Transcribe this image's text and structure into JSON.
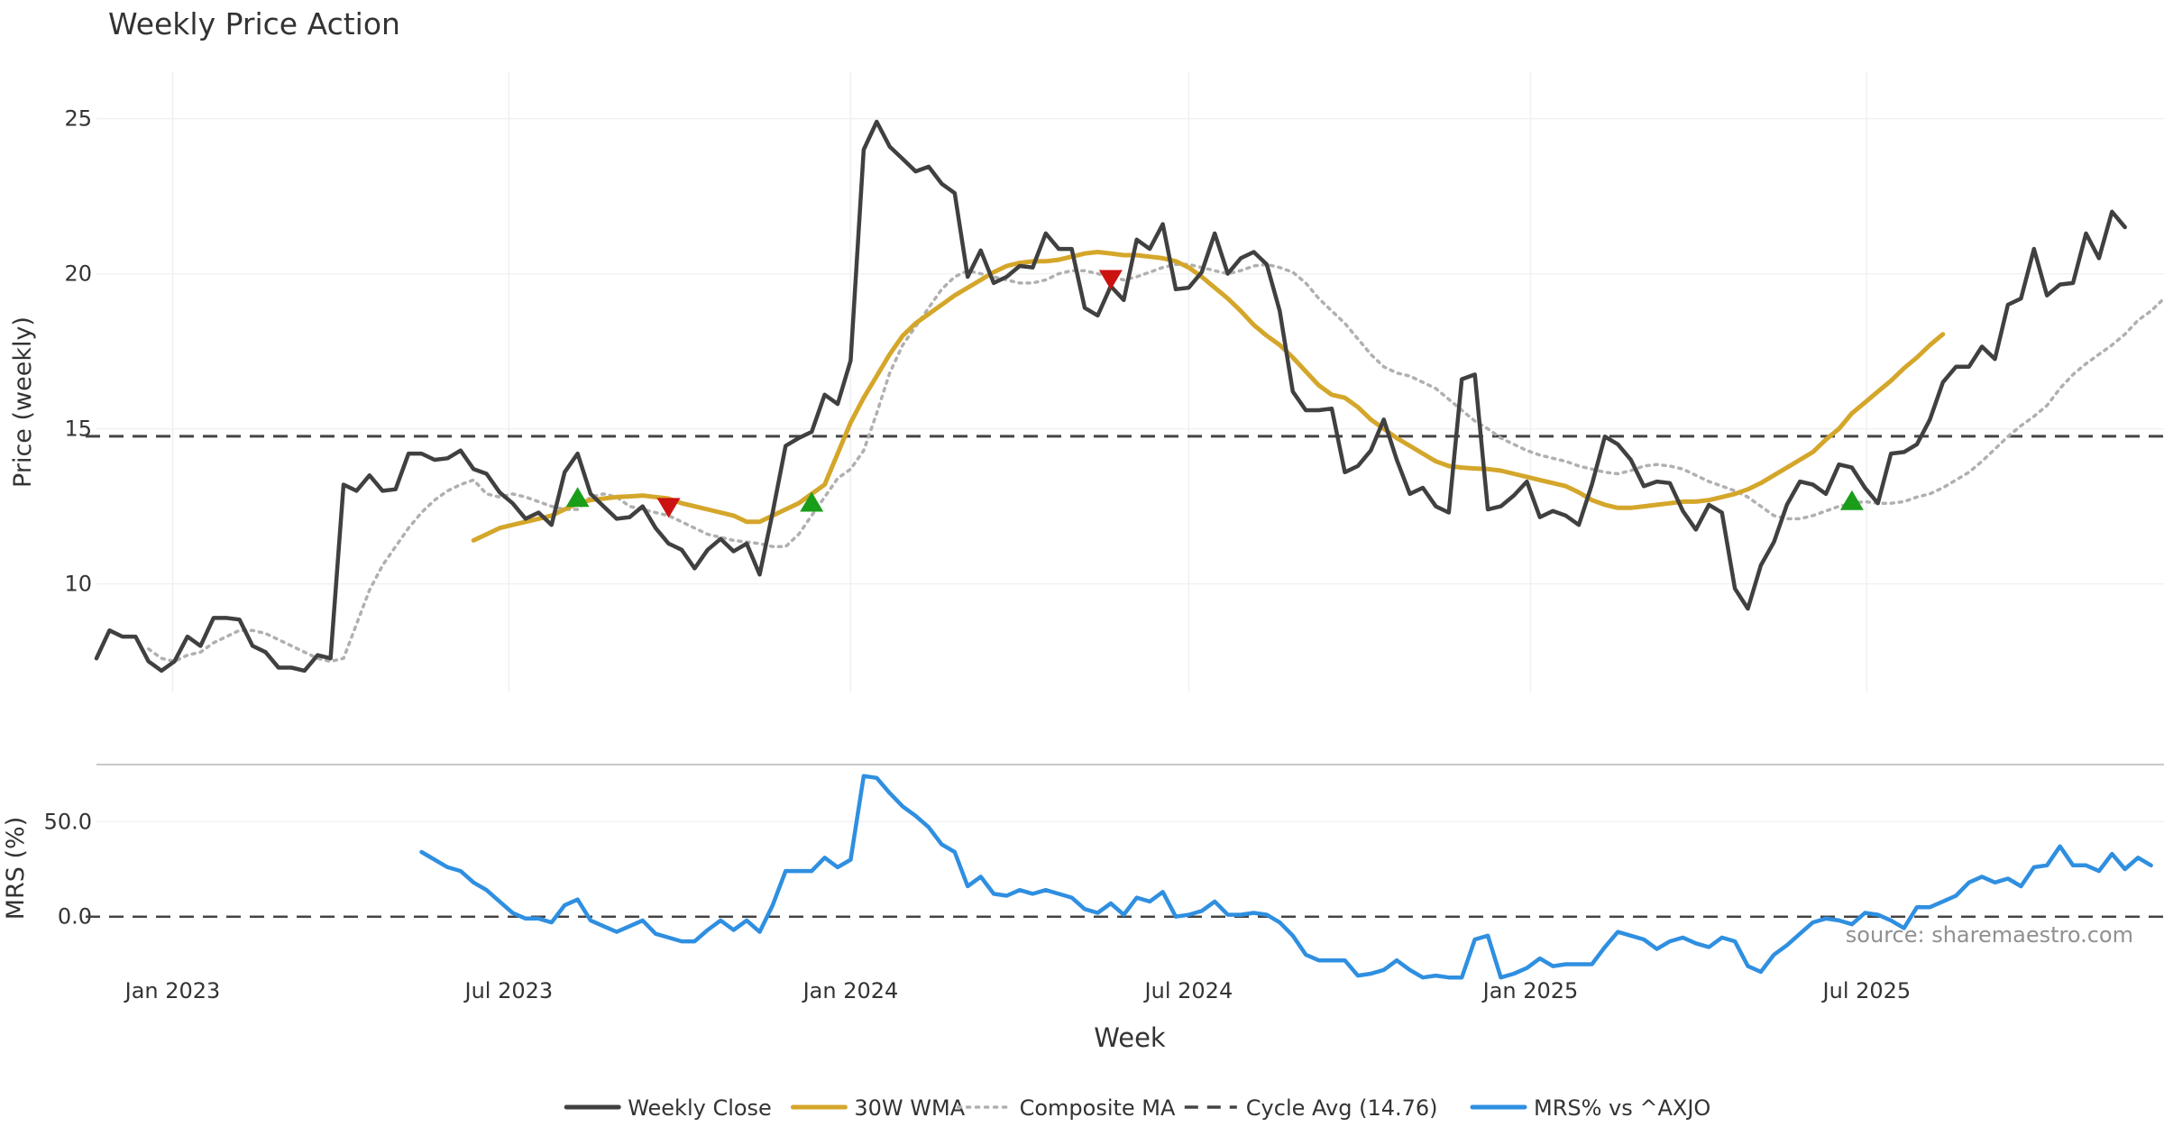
{
  "chart_data": [
    {
      "type": "line",
      "panel": "price",
      "title": "Weekly Price Action",
      "xlabel": "Week",
      "ylabel": "Price (weekly)",
      "ylim": [
        6.5,
        26.5
      ],
      "yticks": [
        10,
        15,
        20,
        25
      ],
      "x_start": "2022-11-21",
      "x_step_days": 7,
      "grid": true,
      "series": [
        {
          "name": "Weekly Close",
          "color": "#404040",
          "style": "solid",
          "start_week": 0,
          "values": [
            7.6,
            8.5,
            8.3,
            8.3,
            7.5,
            7.2,
            7.5,
            8.3,
            8.0,
            8.9,
            8.9,
            8.85,
            8.0,
            7.8,
            7.3,
            7.3,
            7.2,
            7.7,
            7.6,
            13.2,
            13.0,
            13.5,
            13.0,
            13.05,
            14.2,
            14.2,
            14.0,
            14.05,
            14.3,
            13.7,
            13.55,
            12.95,
            12.6,
            12.1,
            12.3,
            11.9,
            13.6,
            14.2,
            12.9,
            12.5,
            12.1,
            12.15,
            12.5,
            11.8,
            11.3,
            11.1,
            10.5,
            11.1,
            11.45,
            11.05,
            11.3,
            10.3,
            12.3,
            14.45,
            14.7,
            14.9,
            16.1,
            15.8,
            17.2,
            24.0,
            24.9,
            24.1,
            23.7,
            23.3,
            23.45,
            22.9,
            22.6,
            19.9,
            20.75,
            19.7,
            19.9,
            20.25,
            20.2,
            21.3,
            20.8,
            20.8,
            18.9,
            18.65,
            19.6,
            19.15,
            21.1,
            20.8,
            21.6,
            19.5,
            19.55,
            20.05,
            21.3,
            20.0,
            20.5,
            20.7,
            20.3,
            18.8,
            16.2,
            15.6,
            15.6,
            15.65,
            13.6,
            13.8,
            14.3,
            15.3,
            14.0,
            12.9,
            13.1,
            12.5,
            12.3,
            16.6,
            16.75,
            12.4,
            12.5,
            12.85,
            13.3,
            12.15,
            12.35,
            12.2,
            11.9,
            13.2,
            14.75,
            14.5,
            14.0,
            13.15,
            13.3,
            13.25,
            12.35,
            11.75,
            12.55,
            12.3,
            9.85,
            9.2,
            10.6,
            11.35,
            12.55,
            13.3,
            13.2,
            12.9,
            13.85,
            13.75,
            13.1,
            12.6,
            14.2,
            14.25,
            14.5,
            15.3,
            16.5,
            17.0,
            17.0,
            17.65,
            17.25,
            19.0,
            19.2,
            20.8,
            19.3,
            19.65,
            19.7,
            21.3,
            20.5,
            22.0,
            21.5
          ]
        },
        {
          "name": "30W WMA",
          "color": "#d4a62a",
          "style": "solid",
          "start_week": 29,
          "values": [
            11.4,
            11.6,
            11.8,
            11.9,
            12.0,
            12.1,
            12.2,
            12.4,
            12.6,
            12.7,
            12.75,
            12.8,
            12.82,
            12.85,
            12.8,
            12.75,
            12.6,
            12.5,
            12.4,
            12.3,
            12.2,
            12.0,
            12.0,
            12.2,
            12.4,
            12.6,
            12.9,
            13.2,
            14.2,
            15.2,
            16.0,
            16.7,
            17.4,
            18.0,
            18.4,
            18.7,
            19.0,
            19.3,
            19.55,
            19.8,
            20.05,
            20.25,
            20.35,
            20.4,
            20.4,
            20.45,
            20.55,
            20.65,
            20.7,
            20.65,
            20.6,
            20.6,
            20.55,
            20.5,
            20.4,
            20.2,
            19.9,
            19.55,
            19.2,
            18.8,
            18.35,
            18.0,
            17.7,
            17.3,
            16.85,
            16.4,
            16.1,
            16.0,
            15.7,
            15.3,
            15.0,
            14.7,
            14.45,
            14.2,
            13.95,
            13.8,
            13.75,
            13.72,
            13.7,
            13.65,
            13.55,
            13.45,
            13.35,
            13.25,
            13.15,
            12.95,
            12.7,
            12.55,
            12.45,
            12.45,
            12.5,
            12.55,
            12.6,
            12.65,
            12.65,
            12.7,
            12.8,
            12.9,
            13.05,
            13.25,
            13.5,
            13.75,
            14.0,
            14.25,
            14.65,
            15.0,
            15.5,
            15.85,
            16.2,
            16.55,
            16.95,
            17.3,
            17.7,
            18.05
          ]
        },
        {
          "name": "Composite MA",
          "color": "#b0b0b0",
          "style": "dotted",
          "start_week": 4,
          "values": [
            7.9,
            7.6,
            7.5,
            7.7,
            7.8,
            8.1,
            8.3,
            8.5,
            8.5,
            8.4,
            8.2,
            8.0,
            7.8,
            7.6,
            7.5,
            7.6,
            8.7,
            9.8,
            10.6,
            11.2,
            11.8,
            12.3,
            12.7,
            13.0,
            13.2,
            13.35,
            12.9,
            12.8,
            12.9,
            12.8,
            12.65,
            12.5,
            12.4,
            12.4,
            12.8,
            12.9,
            12.8,
            12.5,
            12.4,
            12.3,
            12.2,
            12.0,
            11.8,
            11.6,
            11.5,
            11.4,
            11.35,
            11.3,
            11.2,
            11.2,
            11.6,
            12.2,
            12.8,
            13.4,
            13.7,
            14.3,
            15.5,
            16.8,
            17.7,
            18.3,
            18.9,
            19.5,
            19.9,
            20.1,
            20.0,
            19.9,
            19.8,
            19.7,
            19.7,
            19.8,
            20.0,
            20.1,
            20.1,
            20.0,
            19.9,
            19.8,
            19.9,
            20.05,
            20.2,
            20.3,
            20.3,
            20.2,
            20.1,
            20.0,
            20.1,
            20.25,
            20.3,
            20.2,
            20.05,
            19.7,
            19.2,
            18.8,
            18.4,
            17.9,
            17.4,
            17.0,
            16.8,
            16.7,
            16.5,
            16.3,
            15.95,
            15.6,
            15.25,
            15.0,
            14.7,
            14.5,
            14.3,
            14.15,
            14.05,
            13.95,
            13.8,
            13.7,
            13.6,
            13.55,
            13.65,
            13.8,
            13.85,
            13.8,
            13.7,
            13.5,
            13.3,
            13.15,
            13.0,
            12.8,
            12.5,
            12.2,
            12.1,
            12.1,
            12.2,
            12.35,
            12.5,
            12.6,
            12.65,
            12.6,
            12.6,
            12.65,
            12.8,
            12.9,
            13.1,
            13.35,
            13.6,
            13.95,
            14.35,
            14.75,
            15.1,
            15.4,
            15.75,
            16.3,
            16.75,
            17.1,
            17.4,
            17.7,
            18.05,
            18.5,
            18.8,
            19.2
          ]
        },
        {
          "name": "Cycle Avg (14.76)",
          "color": "#444444",
          "style": "dashed",
          "constant": 14.76
        }
      ],
      "markers": [
        {
          "kind": "buy",
          "week": 37,
          "value": 12.8,
          "color": "#1a9e1a"
        },
        {
          "kind": "sell",
          "week": 44,
          "value": 12.45,
          "color": "#cc1111"
        },
        {
          "kind": "buy",
          "week": 55,
          "value": 12.65,
          "color": "#1a9e1a"
        },
        {
          "kind": "sell",
          "week": 78,
          "value": 19.8,
          "color": "#cc1111"
        },
        {
          "kind": "buy",
          "week": 135,
          "value": 12.7,
          "color": "#1a9e1a"
        }
      ]
    },
    {
      "type": "line",
      "panel": "mrs",
      "ylabel": "MRS (%)",
      "ylim": [
        -30,
        80
      ],
      "yticks": [
        0.0,
        50.0
      ],
      "ytick_labels": [
        "0.0",
        "50.0"
      ],
      "zero_line": true,
      "annotation": "source: sharemaestro.com",
      "series": [
        {
          "name": "MRS% vs ^AXJO",
          "color": "#2f8fe0",
          "style": "solid",
          "start_week": 25,
          "values": [
            34,
            30,
            26,
            24,
            18,
            14,
            8,
            2,
            -1,
            -1,
            -3,
            6,
            9,
            -2,
            -5,
            -8,
            -5,
            -2,
            -9,
            -11,
            -13,
            -13,
            -7,
            -2,
            -7,
            -2,
            -8,
            6,
            24,
            24,
            24,
            31,
            26,
            30,
            74,
            73,
            65,
            58,
            53,
            47,
            38,
            34,
            16,
            21,
            12,
            11,
            14,
            12,
            14,
            12,
            10,
            4,
            2,
            7,
            1,
            10,
            8,
            13,
            0,
            1,
            3,
            8,
            1,
            1,
            2,
            1,
            -3,
            -10,
            -20,
            -23,
            -23,
            -23,
            -31,
            -30,
            -28,
            -23,
            -28,
            -32,
            -31,
            -32,
            -32,
            -12,
            -10,
            -32,
            -30,
            -27,
            -22,
            -26,
            -25,
            -25,
            -25,
            -16,
            -8,
            -10,
            -12,
            -17,
            -13,
            -11,
            -14,
            -16,
            -11,
            -13,
            -26,
            -29,
            -20,
            -15,
            -9,
            -3,
            -1,
            -2,
            -4,
            2,
            1,
            -2,
            -6,
            5,
            5,
            8,
            11,
            18,
            21,
            18,
            20,
            16,
            26,
            27,
            37,
            27,
            27,
            24,
            33,
            25,
            31,
            27
          ]
        }
      ]
    }
  ],
  "xaxis": {
    "ticks": [
      {
        "label": "Jan 2023",
        "date": "2023-01-01"
      },
      {
        "label": "Jul 2023",
        "date": "2023-07-01"
      },
      {
        "label": "Jan 2024",
        "date": "2024-01-01"
      },
      {
        "label": "Jul 2024",
        "date": "2024-07-01"
      },
      {
        "label": "Jan 2025",
        "date": "2025-01-01"
      },
      {
        "label": "Jul 2025",
        "date": "2025-07-01"
      }
    ]
  },
  "legend": {
    "position": "bottom-center",
    "entries": [
      {
        "label": "Weekly Close",
        "color": "#404040",
        "style": "solid"
      },
      {
        "label": "30W WMA",
        "color": "#d4a62a",
        "style": "solid"
      },
      {
        "label": "Composite MA",
        "color": "#b0b0b0",
        "style": "dotted"
      },
      {
        "label": "Cycle Avg (14.76)",
        "color": "#444444",
        "style": "dashed"
      },
      {
        "label": "MRS% vs ^AXJO",
        "color": "#2f8fe0",
        "style": "solid"
      }
    ]
  }
}
